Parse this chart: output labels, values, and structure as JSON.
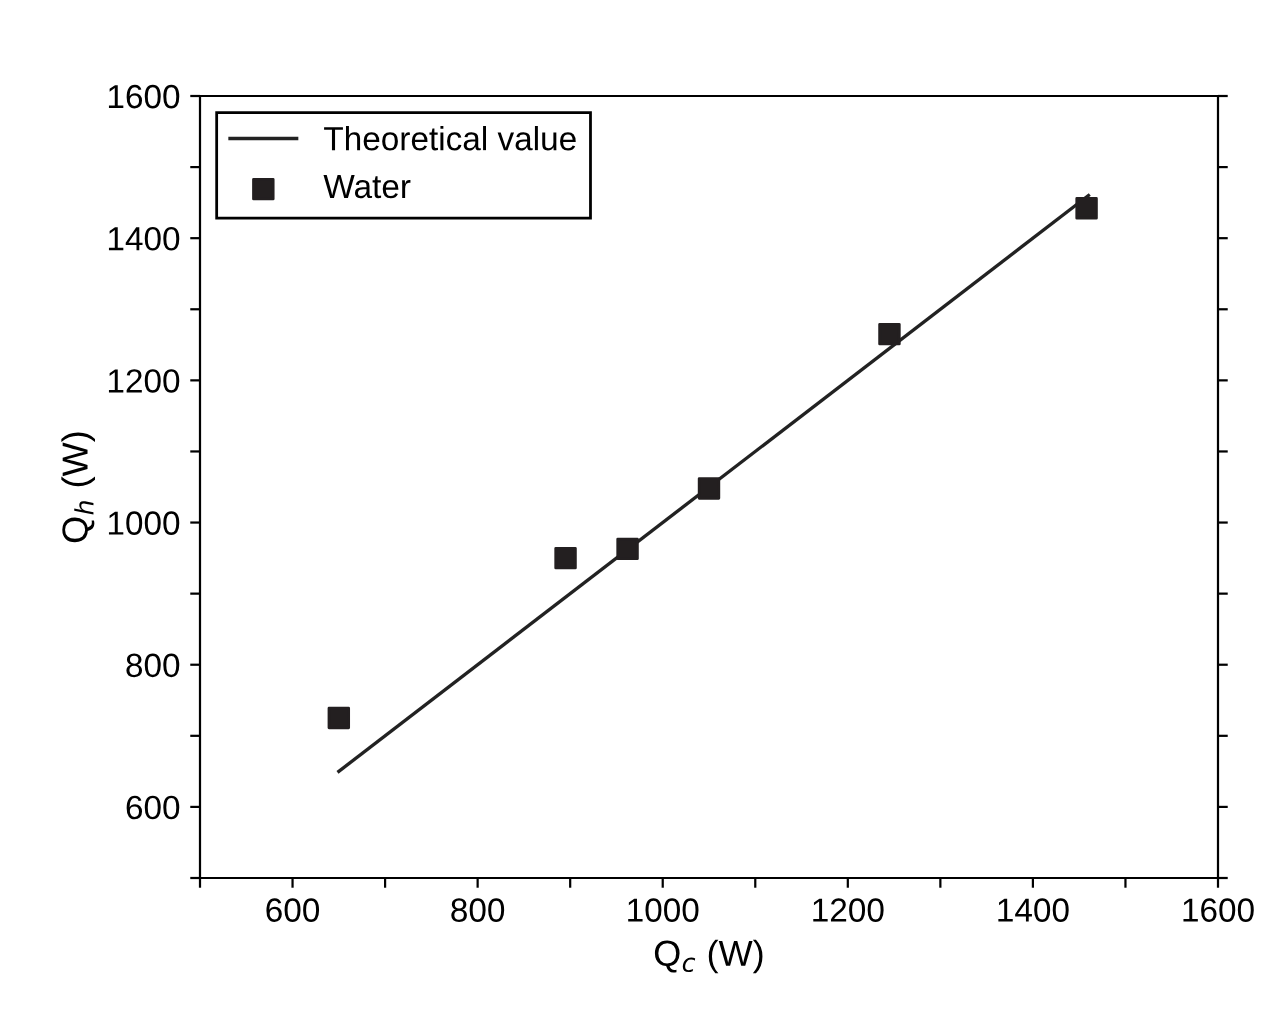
{
  "chart_data": {
    "type": "scatter",
    "xlabel": "Q$_{c}$ (W)",
    "ylabel": "Q$_{h}$ (W)",
    "series": [
      {
        "name": "Theoretical value",
        "type": "line",
        "color": "#222222",
        "x": [
          650,
          1460
        ],
        "values": [
          650,
          1460
        ],
        "marker": "none",
        "line_style": "solid"
      },
      {
        "name": "Water",
        "color": "#231f20",
        "x": [
          650,
          895,
          962,
          1050,
          1245,
          1458
        ],
        "values": [
          725,
          950,
          963,
          1048,
          1265,
          1442
        ],
        "marker": "square"
      }
    ],
    "xlim": [
      500,
      1600
    ],
    "ylim": [
      500,
      1600
    ],
    "xticks": [
      {
        "value": 500,
        "label": null
      },
      600,
      {
        "value": 700,
        "label": null
      },
      800,
      {
        "value": 900,
        "label": null
      },
      1000,
      {
        "value": 1100,
        "label": null
      },
      1200,
      {
        "value": 1300,
        "label": null
      },
      1400,
      {
        "value": 1500,
        "label": null
      },
      1600
    ],
    "yticks": [
      {
        "value": 500,
        "label": null
      },
      600,
      {
        "value": 700,
        "label": null
      },
      800,
      {
        "value": 900,
        "label": null
      },
      1000,
      {
        "value": 1100,
        "label": null
      },
      1200,
      {
        "value": 1300,
        "label": null
      },
      1400,
      {
        "value": 1500,
        "label": null
      },
      1600
    ],
    "grid": false,
    "legend": "top left"
  }
}
